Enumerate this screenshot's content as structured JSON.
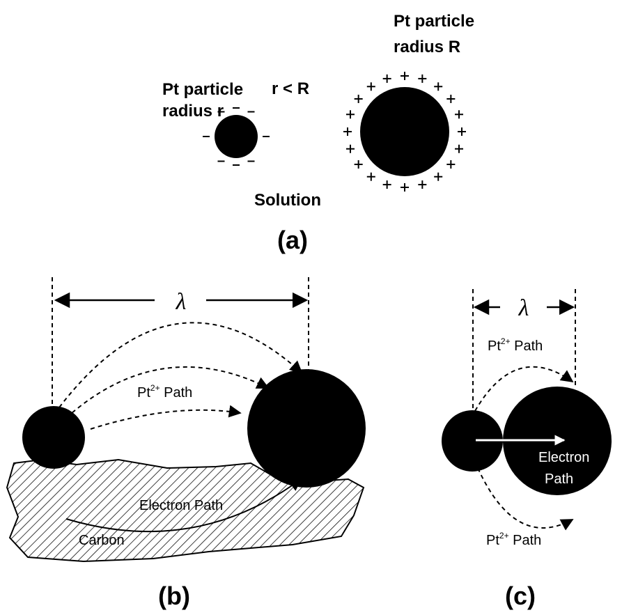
{
  "panel_a": {
    "small_label": [
      "Pt particle",
      "radius r"
    ],
    "large_label": [
      "Pt particle",
      "radius R"
    ],
    "relation": "r < R",
    "medium": "Solution",
    "caption": "(a)"
  },
  "panel_b": {
    "spacing": "λ",
    "ion_path": {
      "base": "Pt",
      "sup": "2+",
      "rest": " Path"
    },
    "electron_path": "Electron Path",
    "support": "Carbon",
    "caption": "(b)"
  },
  "panel_c": {
    "spacing": "λ",
    "ion_path_top": {
      "base": "Pt",
      "sup": "2+",
      "rest": " Path"
    },
    "electron_path": [
      "Electron",
      "Path"
    ],
    "ion_path_bottom": {
      "base": "Pt",
      "sup": "2+",
      "rest": " Path"
    },
    "caption": "(c)"
  }
}
